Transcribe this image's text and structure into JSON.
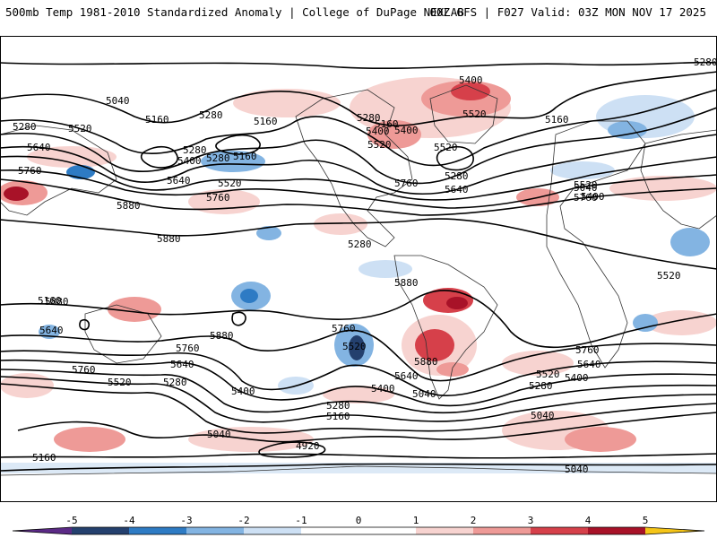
{
  "header": {
    "title_left": "500mb Temp 1981-2010 Standardized Anomaly | College of DuPage NEXLAB",
    "title_right": "00Z GFS | F027 Valid: 03Z MON NOV 17 2025"
  },
  "map": {
    "projection": "cylindrical-equidistant-global",
    "contour_field": "500mb geopotential height (dam)",
    "contour_labels": [
      "5280",
      "5040",
      "5160",
      "5280",
      "5160",
      "5520",
      "5640",
      "5760",
      "5400",
      "5280",
      "5160",
      "5520",
      "5640",
      "5880",
      "5880",
      "5760",
      "5400",
      "5520",
      "5280",
      "5160",
      "5640",
      "5880",
      "5760",
      "5520",
      "5280",
      "5400",
      "5280",
      "5160",
      "5040",
      "5400",
      "5520",
      "5160",
      "5640",
      "5880",
      "5760",
      "5640",
      "5760",
      "5520",
      "5280",
      "5400",
      "5040",
      "4920",
      "5040",
      "5040",
      "5160",
      "5280",
      "5400",
      "5520",
      "5640",
      "5760",
      "5880",
      "5400",
      "5520",
      "5280",
      "5760",
      "5640",
      "5760",
      "5880",
      "5520",
      "5280",
      "5040",
      "5160",
      "5280",
      "5400",
      "5520"
    ],
    "anomaly_colors": {
      "neg5": "#5b2a86",
      "neg4": "#24406e",
      "neg3": "#2e7bc4",
      "neg2": "#83b4e2",
      "neg1": "#cde0f4",
      "zero": "#ffffff",
      "pos1": "#f7d3d0",
      "pos2": "#ee9a97",
      "pos3": "#d6404a",
      "pos4": "#a81228",
      "pos5": "#6e0a16",
      "tip": "#f5c518"
    }
  },
  "colorbar": {
    "ticks": [
      "-5",
      "-4",
      "-3",
      "-2",
      "-1",
      "0",
      "1",
      "2",
      "3",
      "4",
      "5"
    ]
  }
}
